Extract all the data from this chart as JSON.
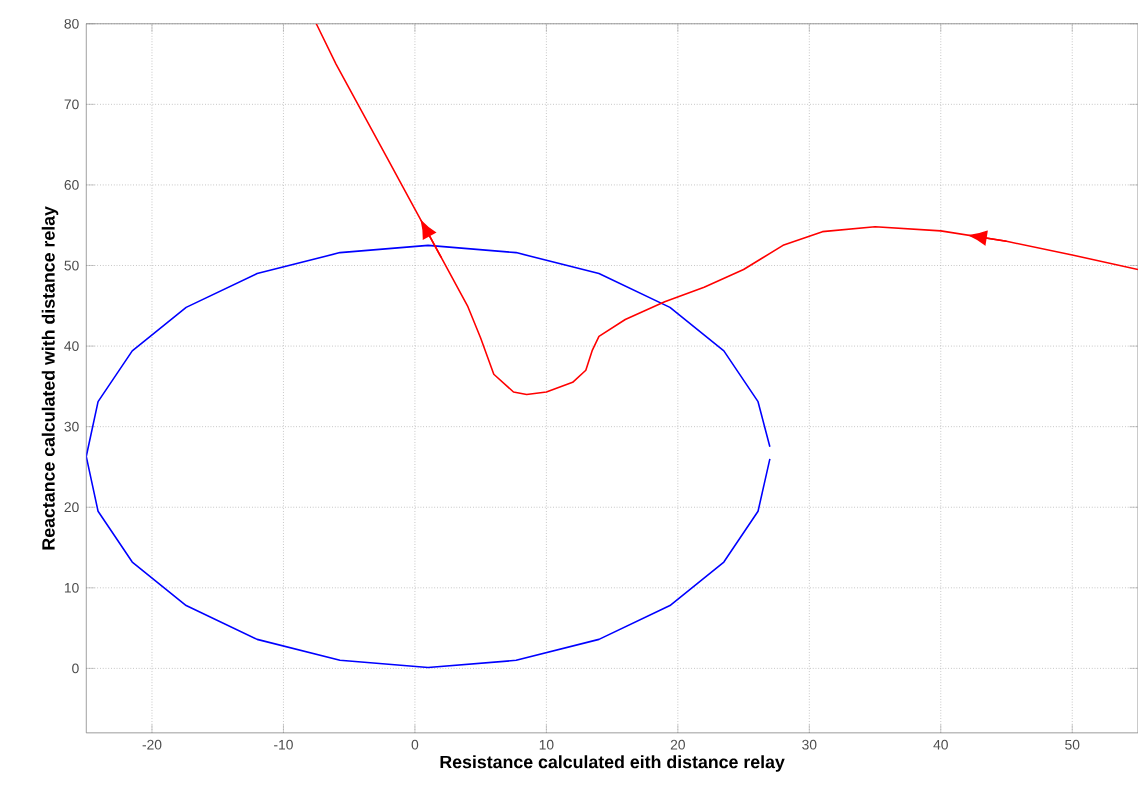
{
  "chart_data": {
    "type": "line",
    "xlabel": "Resistance calculated eith distance relay",
    "ylabel": "Reactance calculated with distance relay",
    "xlim": [
      -25,
      55
    ],
    "ylim": [
      -8,
      80
    ],
    "xticks": [
      -20,
      -10,
      0,
      10,
      20,
      30,
      40,
      50
    ],
    "yticks": [
      0,
      10,
      20,
      30,
      40,
      50,
      60,
      70,
      80
    ],
    "grid": true,
    "line_style": "solid",
    "marker": "none",
    "series": [
      {
        "color": "#0000ff",
        "x": [
          27,
          26.1,
          23.5,
          19.4,
          14,
          7.7,
          1,
          -5.7,
          -12,
          -17.4,
          -21.5,
          -24.1,
          -25,
          -24.1,
          -21.5,
          -17.4,
          -12,
          -5.7,
          1,
          7.7,
          14,
          19.4,
          23.5,
          26.1,
          27
        ],
        "values": [
          27.5,
          33.1,
          39.4,
          44.8,
          49,
          51.6,
          52.5,
          51.6,
          49,
          44.8,
          39.4,
          33.1,
          26.3,
          19.5,
          13.2,
          7.8,
          3.6,
          1,
          0.1,
          1,
          3.6,
          7.8,
          13.2,
          19.5,
          26
        ]
      },
      {
        "color": "#ff0000",
        "x": [
          55,
          50,
          45,
          40,
          35,
          31,
          28,
          25,
          22,
          19,
          16,
          14,
          13.5,
          13,
          12,
          10,
          8.5,
          7.5,
          6,
          5,
          4,
          2,
          0,
          -2,
          -4,
          -6,
          -7.5
        ],
        "values": [
          49.5,
          51.3,
          53,
          54.3,
          54.8,
          54.2,
          52.5,
          49.5,
          47.3,
          45.5,
          43.3,
          41.2,
          39.5,
          37,
          35.5,
          34.3,
          34,
          34.3,
          36.5,
          41,
          45,
          51,
          57,
          63,
          69,
          75,
          80
        ]
      }
    ]
  }
}
